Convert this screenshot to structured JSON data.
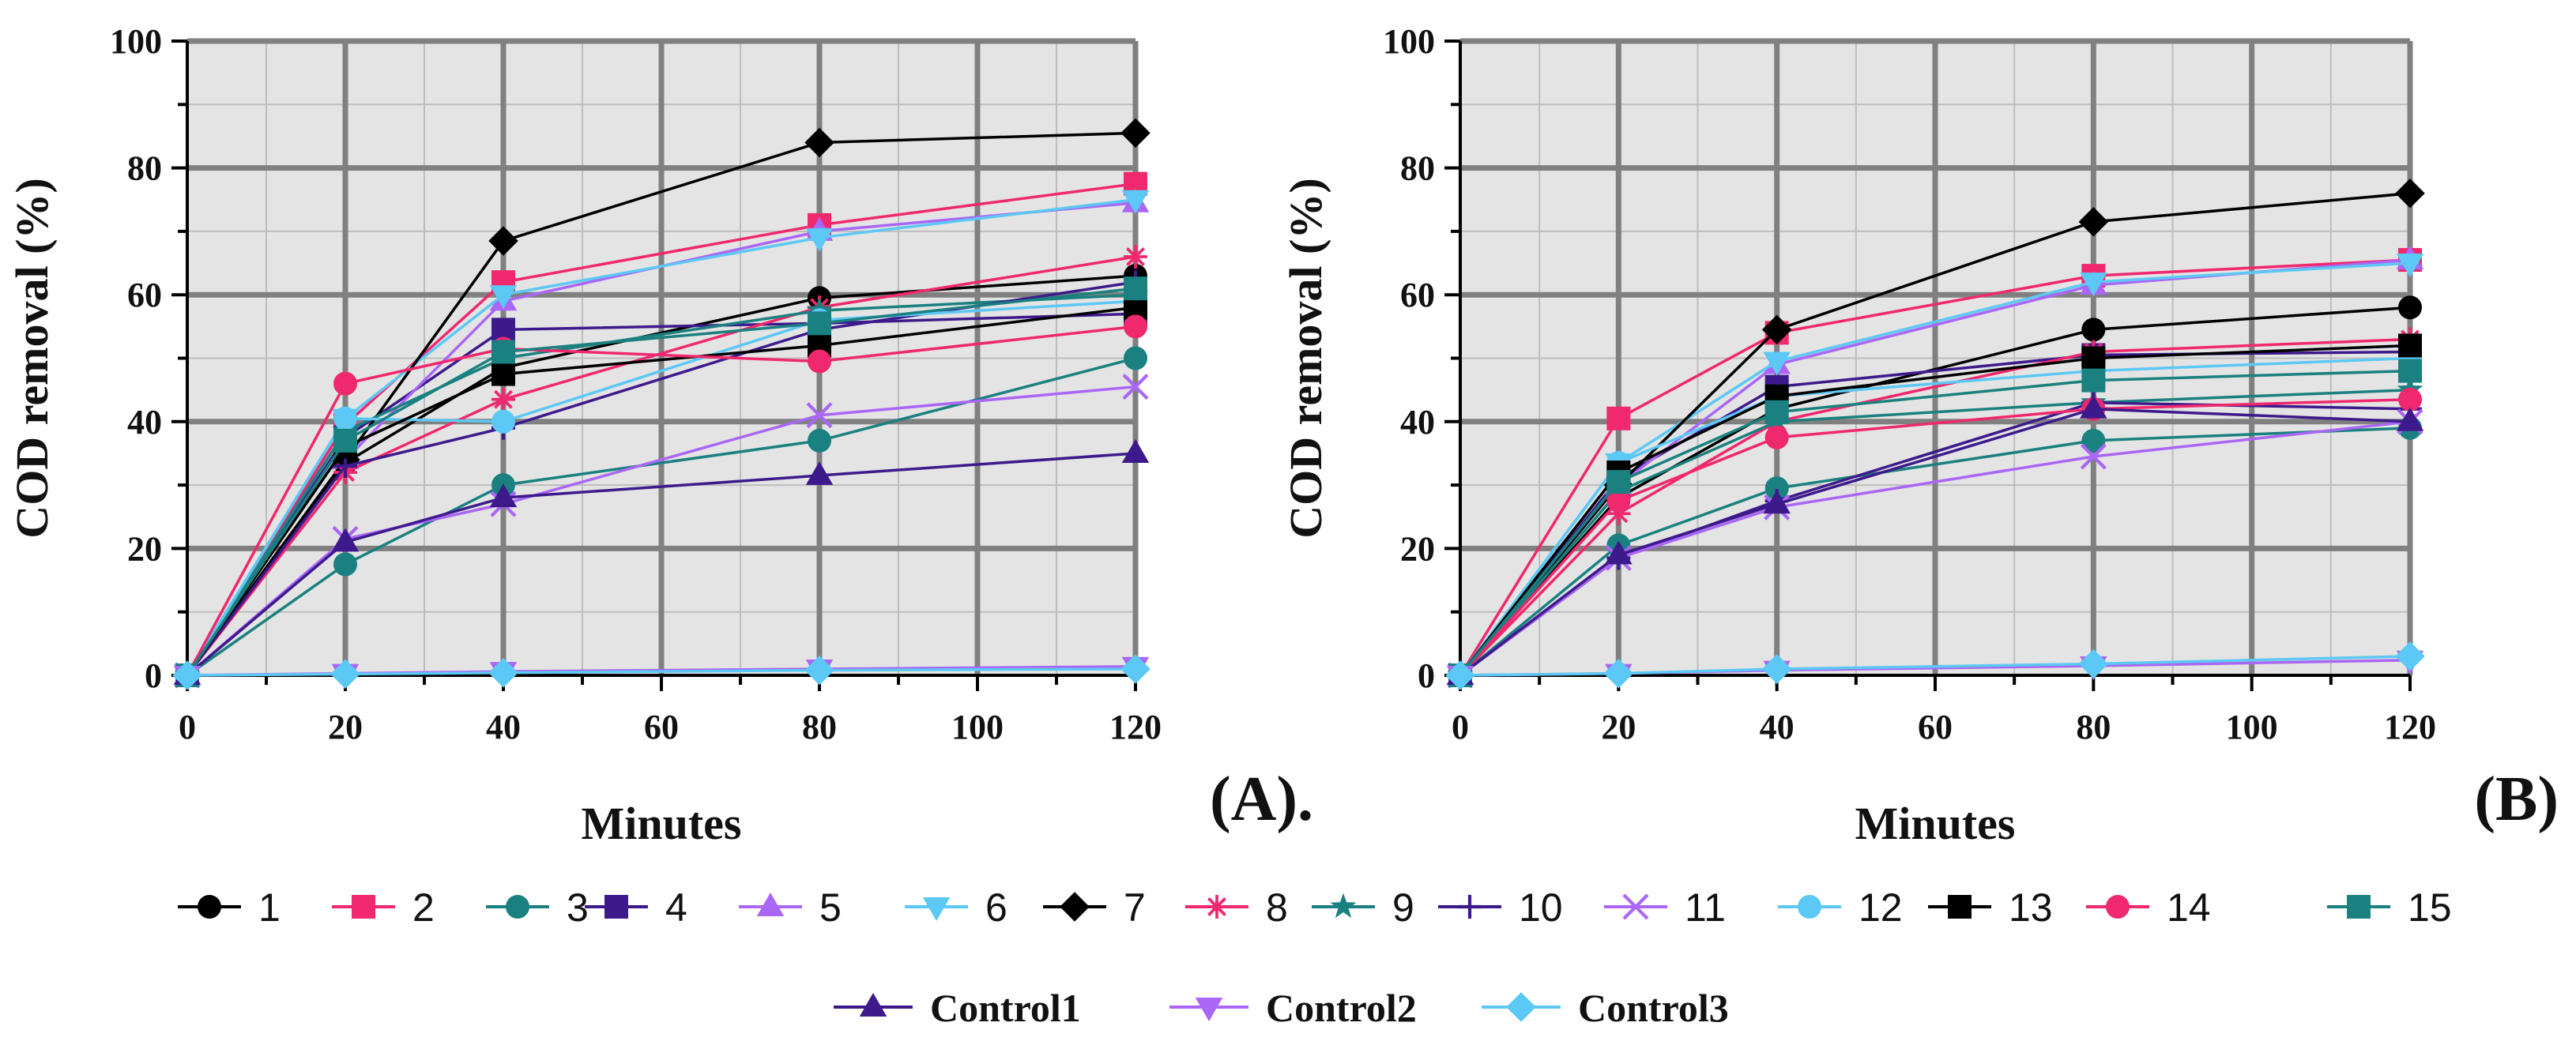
{
  "chart_data": [
    {
      "type": "line",
      "panel_label": "(A).",
      "xlabel": "Minutes",
      "ylabel": "COD removal (%)",
      "xlim": [
        0,
        120
      ],
      "ylim": [
        0,
        100
      ],
      "x_ticks": [
        0,
        20,
        40,
        60,
        80,
        100,
        120
      ],
      "y_ticks": [
        0,
        20,
        40,
        60,
        80,
        100
      ],
      "grid": true,
      "x": [
        0,
        20,
        40,
        80,
        120
      ],
      "series": [
        {
          "name": "1",
          "values": [
            0,
            33.5,
            48.5,
            59.5,
            63
          ]
        },
        {
          "name": "2",
          "values": [
            0,
            39.5,
            62,
            71,
            77.5
          ]
        },
        {
          "name": "3",
          "values": [
            0,
            17.5,
            30,
            37,
            50
          ]
        },
        {
          "name": "4",
          "values": [
            0,
            37.5,
            54.5,
            55.5,
            57
          ]
        },
        {
          "name": "5",
          "values": [
            0,
            34,
            59,
            70,
            74.5
          ]
        },
        {
          "name": "6",
          "values": [
            0,
            40.5,
            60,
            69,
            75
          ]
        },
        {
          "name": "7",
          "values": [
            0,
            34,
            68.5,
            84,
            85.5
          ]
        },
        {
          "name": "8",
          "values": [
            0,
            32,
            43.5,
            58,
            66
          ]
        },
        {
          "name": "9",
          "values": [
            0,
            38.5,
            50,
            57.5,
            60
          ]
        },
        {
          "name": "10",
          "values": [
            0,
            33,
            39,
            54.5,
            62
          ]
        },
        {
          "name": "11",
          "values": [
            0,
            21.5,
            27,
            41,
            45.5
          ]
        },
        {
          "name": "12",
          "values": [
            0,
            40.5,
            40,
            56,
            59
          ]
        },
        {
          "name": "13",
          "values": [
            0,
            36,
            47.5,
            52,
            58
          ]
        },
        {
          "name": "14",
          "values": [
            0,
            46,
            51.5,
            49.5,
            55
          ]
        },
        {
          "name": "15",
          "values": [
            0,
            37,
            51,
            55.5,
            61
          ]
        },
        {
          "name": "Control1",
          "values": [
            0,
            21,
            28,
            31.5,
            35
          ]
        },
        {
          "name": "Control2",
          "values": [
            0,
            0.3,
            0.6,
            1,
            1.4
          ]
        },
        {
          "name": "Control3",
          "values": [
            0,
            0.2,
            0.4,
            0.8,
            1
          ]
        }
      ]
    },
    {
      "type": "line",
      "panel_label": "(B)",
      "xlabel": "Minutes",
      "ylabel": "COD removal (%)",
      "xlim": [
        0,
        120
      ],
      "ylim": [
        0,
        100
      ],
      "x_ticks": [
        0,
        20,
        40,
        60,
        80,
        100,
        120
      ],
      "y_ticks": [
        0,
        20,
        40,
        60,
        80,
        100
      ],
      "grid": true,
      "x": [
        0,
        20,
        40,
        80,
        120
      ],
      "series": [
        {
          "name": "1",
          "values": [
            0,
            28,
            42,
            54.5,
            58
          ]
        },
        {
          "name": "2",
          "values": [
            0,
            40.5,
            54,
            63,
            65.5
          ]
        },
        {
          "name": "3",
          "values": [
            0,
            20.5,
            29.5,
            37,
            39
          ]
        },
        {
          "name": "4",
          "values": [
            0,
            31,
            45.5,
            50.5,
            51
          ]
        },
        {
          "name": "5",
          "values": [
            0,
            30,
            49,
            61.5,
            65.5
          ]
        },
        {
          "name": "6",
          "values": [
            0,
            33.5,
            49.5,
            62,
            65
          ]
        },
        {
          "name": "7",
          "values": [
            0,
            30,
            54.5,
            71.5,
            76
          ]
        },
        {
          "name": "8",
          "values": [
            0,
            25.5,
            40,
            51,
            53
          ]
        },
        {
          "name": "9",
          "values": [
            0,
            29,
            40,
            43,
            45
          ]
        },
        {
          "name": "10",
          "values": [
            0,
            18.5,
            27.5,
            43,
            42
          ]
        },
        {
          "name": "11",
          "values": [
            0,
            18.5,
            26.5,
            34.5,
            40
          ]
        },
        {
          "name": "12",
          "values": [
            0,
            33.5,
            44,
            48,
            50
          ]
        },
        {
          "name": "13",
          "values": [
            0,
            32,
            44,
            50,
            52
          ]
        },
        {
          "name": "14",
          "values": [
            0,
            27.5,
            37.5,
            42,
            43.5
          ]
        },
        {
          "name": "15",
          "values": [
            0,
            30.5,
            41.5,
            46.5,
            48
          ]
        },
        {
          "name": "Control1",
          "values": [
            0,
            19,
            27,
            42,
            40
          ]
        },
        {
          "name": "Control2",
          "values": [
            0,
            0.3,
            0.8,
            1.5,
            2.4
          ]
        },
        {
          "name": "Control3",
          "values": [
            0,
            0.3,
            1,
            1.8,
            3
          ]
        }
      ]
    }
  ],
  "series_styles": [
    {
      "name": "1",
      "color": "#000000",
      "marker": "circle"
    },
    {
      "name": "2",
      "color": "#f0286e",
      "marker": "square"
    },
    {
      "name": "3",
      "color": "#1a8080",
      "marker": "circle"
    },
    {
      "name": "4",
      "color": "#3d1a8c",
      "marker": "square"
    },
    {
      "name": "5",
      "color": "#aa66f5",
      "marker": "triangle-up"
    },
    {
      "name": "6",
      "color": "#5cc8f5",
      "marker": "triangle-down"
    },
    {
      "name": "7",
      "color": "#000000",
      "marker": "diamond"
    },
    {
      "name": "8",
      "color": "#f0286e",
      "marker": "asterisk"
    },
    {
      "name": "9",
      "color": "#1a8080",
      "marker": "star"
    },
    {
      "name": "10",
      "color": "#3d1a8c",
      "marker": "plus"
    },
    {
      "name": "11",
      "color": "#aa66f5",
      "marker": "x"
    },
    {
      "name": "12",
      "color": "#5cc8f5",
      "marker": "circle"
    },
    {
      "name": "13",
      "color": "#000000",
      "marker": "square"
    },
    {
      "name": "14",
      "color": "#f0286e",
      "marker": "circle"
    },
    {
      "name": "15",
      "color": "#1a8080",
      "marker": "square"
    },
    {
      "name": "Control1",
      "color": "#3d1a8c",
      "marker": "triangle-up"
    },
    {
      "name": "Control2",
      "color": "#aa66f5",
      "marker": "triangle-down"
    },
    {
      "name": "Control3",
      "color": "#5cc8f5",
      "marker": "diamond"
    }
  ],
  "legend": {
    "row1": [
      "1",
      "2",
      "3",
      "4",
      "5",
      "6",
      "7",
      "8",
      "9",
      "10",
      "11",
      "12",
      "13",
      "14",
      "15"
    ],
    "row2": [
      "Control1",
      "Control2",
      "Control3"
    ],
    "placement": "bottom"
  },
  "colors": {
    "plot_background": "#e4e4e4",
    "grid_major": "#808080",
    "grid_minor": "#bdbdbd",
    "axis": "#000000"
  }
}
